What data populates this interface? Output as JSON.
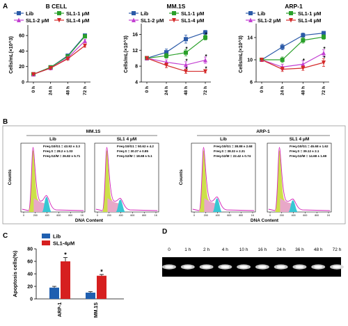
{
  "panels": {
    "a": "A",
    "b": "B",
    "c": "C",
    "d": "D"
  },
  "colors": {
    "lib": "#2b5aa8",
    "sl1_1": "#2aa02a",
    "sl1_2": "#c23fd1",
    "sl1_4": "#d42a2a",
    "apop_lib": "#1f5fb0",
    "apop_sl1": "#d61f1f",
    "g1": "#cde04a",
    "g2": "#38c7d4",
    "s": "#e8a8c8",
    "hist_line": "#d21fb8"
  },
  "chart_data": [
    {
      "id": "bcell",
      "type": "line",
      "title": "B CELL",
      "ylabel": "Cells/mL(×10^3)",
      "categories": [
        "0 h",
        "24 h",
        "48 h",
        "72 h"
      ],
      "ylim": [
        0,
        70
      ],
      "yticks": [
        0,
        20,
        40,
        60
      ],
      "series": [
        {
          "name": "Lib",
          "color": "#2b5aa8",
          "marker": "square",
          "values": [
            10,
            19,
            34,
            60
          ],
          "err": [
            0.5,
            1,
            1.5,
            1.5
          ]
        },
        {
          "name": "SL1-1 μM",
          "color": "#2aa02a",
          "marker": "square",
          "values": [
            10,
            19,
            33,
            59
          ],
          "err": [
            0.5,
            1,
            1.5,
            1.5
          ]
        },
        {
          "name": "SL1-2 μM",
          "color": "#c23fd1",
          "marker": "triangle",
          "values": [
            10,
            18,
            31,
            53
          ],
          "err": [
            0.5,
            1,
            1.5,
            2
          ]
        },
        {
          "name": "SL1-4 μM",
          "color": "#d42a2a",
          "marker": "triangle-down",
          "values": [
            10,
            18,
            30,
            47
          ],
          "err": [
            0.5,
            1,
            1.5,
            2
          ]
        }
      ],
      "star_labels": []
    },
    {
      "id": "mm1s",
      "type": "line",
      "title": "MM.1S",
      "ylabel": "Cells/mL(×10^3)",
      "categories": [
        "0 h",
        "24 h",
        "48 h",
        "72 h"
      ],
      "ylim": [
        4,
        18
      ],
      "yticks": [
        4,
        8,
        12,
        16
      ],
      "series": [
        {
          "name": "Lib",
          "color": "#2b5aa8",
          "marker": "square",
          "values": [
            10,
            11.5,
            14.8,
            16.5
          ],
          "err": [
            0.3,
            0.8,
            1,
            0.5
          ]
        },
        {
          "name": "SL1-1 μM",
          "color": "#2aa02a",
          "marker": "square",
          "values": [
            10,
            10.6,
            11.4,
            15.2
          ],
          "err": [
            0.3,
            0.6,
            0.8,
            0.6
          ]
        },
        {
          "name": "SL1-2 μM",
          "color": "#c23fd1",
          "marker": "triangle",
          "values": [
            10,
            9,
            8.3,
            9.5
          ],
          "err": [
            0.3,
            0.6,
            0.8,
            0.8
          ]
        },
        {
          "name": "SL1-4 μM",
          "color": "#d42a2a",
          "marker": "triangle-down",
          "values": [
            10,
            8.2,
            6.7,
            6.7
          ],
          "err": [
            0.3,
            0.6,
            0.5,
            0.4
          ]
        }
      ],
      "star_labels": [
        {
          "x": 2,
          "y": 12.4,
          "label": "*"
        },
        {
          "x": 2,
          "y": 9.3,
          "label": "*"
        },
        {
          "x": 2,
          "y": 7.3,
          "label": "*"
        },
        {
          "x": 3,
          "y": 16.0,
          "label": "*"
        },
        {
          "x": 3,
          "y": 10.5,
          "label": "*"
        },
        {
          "x": 3,
          "y": 7.4,
          "label": "*"
        }
      ]
    },
    {
      "id": "arp1",
      "type": "line",
      "title": "ARP-1",
      "ylabel": "Cells/mL(×10^3)",
      "categories": [
        "0 h",
        "24 h",
        "48 h",
        "72 h"
      ],
      "ylim": [
        6,
        16
      ],
      "yticks": [
        6,
        10,
        14
      ],
      "series": [
        {
          "name": "Lib",
          "color": "#2b5aa8",
          "marker": "square",
          "values": [
            10,
            12.3,
            14.4,
            14.8
          ],
          "err": [
            0.3,
            0.5,
            0.4,
            0.3
          ]
        },
        {
          "name": "SL1-1 μM",
          "color": "#2aa02a",
          "marker": "square",
          "values": [
            10,
            10,
            13.5,
            14.1
          ],
          "err": [
            0.3,
            0.5,
            0.5,
            0.4
          ]
        },
        {
          "name": "SL1-2 μM",
          "color": "#c23fd1",
          "marker": "triangle",
          "values": [
            10,
            8.7,
            9.2,
            11.2
          ],
          "err": [
            0.3,
            0.5,
            0.6,
            0.6
          ]
        },
        {
          "name": "SL1-4 μM",
          "color": "#d42a2a",
          "marker": "triangle-down",
          "values": [
            10,
            8.3,
            8.5,
            9.5
          ],
          "err": [
            0.3,
            0.4,
            0.4,
            0.7
          ]
        }
      ],
      "star_labels": [
        {
          "x": 2,
          "y": 9.9,
          "label": "*"
        },
        {
          "x": 3,
          "y": 12.0,
          "label": "*"
        },
        {
          "x": 3,
          "y": 10.4,
          "label": "*"
        }
      ]
    },
    {
      "id": "apoptosis",
      "type": "bar",
      "ylabel": "Apoptosis cells(%)",
      "categories": [
        "ARP-1",
        "MM.1S"
      ],
      "ylim": [
        0,
        80
      ],
      "yticks": [
        0,
        20,
        40,
        60,
        80
      ],
      "series": [
        {
          "name": "Lib",
          "color": "#1f5fb0",
          "values": [
            18,
            10
          ],
          "err": [
            2,
            1.5
          ]
        },
        {
          "name": "SL1-4μM",
          "color": "#d61f1f",
          "values": [
            60,
            37
          ],
          "err": [
            6,
            2
          ]
        }
      ],
      "star_labels": [
        {
          "category": 0,
          "series": 1,
          "label": "*"
        },
        {
          "category": 1,
          "series": 1,
          "label": "*"
        }
      ]
    }
  ],
  "flow": {
    "ylabel": "Counts",
    "xlabel": "DNA Content",
    "xticks": [
      "0",
      "200",
      "400",
      "600",
      "800",
      "1K"
    ],
    "groups": [
      {
        "title": "MM.1S",
        "cols": [
          {
            "label": "Lib",
            "stats": [
              "Freq.G0/G1 = 43.92 ± 3.3",
              "Freq.S = 28.2 ± 1.03",
              "Freq.G2/M = 26.82 ± 5.71"
            ]
          },
          {
            "label": "SL1 4 μM",
            "stats": [
              "Freq.G0/G1 = 50.62 ± 4.2",
              "Freq.S = 30.37 ± 0.85",
              "Freq.G2/M = 18.68 ± 5.1"
            ]
          }
        ]
      },
      {
        "title": "ARP-1",
        "cols": [
          {
            "label": "Lib",
            "stats": [
              "Freq.G0/G1 = 38.88 ± 2.68",
              "Freq.S = 38.32 ± 2.31",
              "Freq.G2/M = 22.42 ± 0.74"
            ]
          },
          {
            "label": "SL1 4 μM",
            "stats": [
              "Freq.G0/G1 = 45.68 ± 1.62",
              "Freq.S = 39.12 ± 2.1",
              "Freq.G2/M = 14.68 ± 1.69"
            ]
          }
        ]
      }
    ]
  },
  "gel": {
    "lanes": [
      "0",
      "1 h",
      "2 h",
      "4 h",
      "10 h",
      "16 h",
      "24 h",
      "36 h",
      "48 h",
      "72 h"
    ]
  }
}
